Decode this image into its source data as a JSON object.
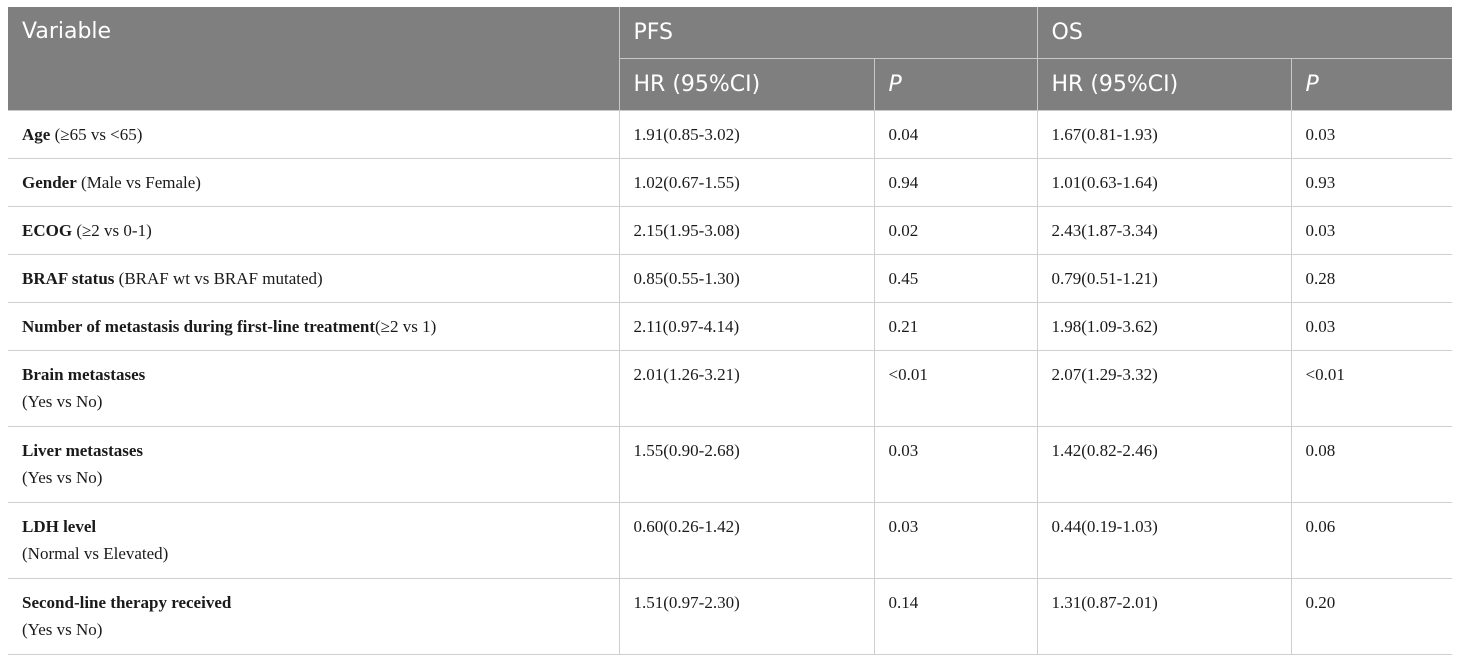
{
  "header": {
    "variable": "Variable",
    "pfs": "PFS",
    "os": "OS",
    "hr": "HR (95%CI)",
    "p": "P"
  },
  "rows": [
    {
      "name": "Age",
      "detail": " (≥65 vs <65)",
      "detail2": "",
      "pfs_hr": "1.91(0.85-3.02)",
      "pfs_p": "0.04",
      "os_hr": "1.67(0.81-1.93)",
      "os_p": "0.03"
    },
    {
      "name": "Gender",
      "detail": " (Male vs Female)",
      "detail2": "",
      "pfs_hr": "1.02(0.67-1.55)",
      "pfs_p": "0.94",
      "os_hr": "1.01(0.63-1.64)",
      "os_p": "0.93"
    },
    {
      "name": "ECOG",
      "detail": " (≥2 vs 0-1)",
      "detail2": "",
      "pfs_hr": "2.15(1.95-3.08)",
      "pfs_p": "0.02",
      "os_hr": "2.43(1.87-3.34)",
      "os_p": "0.03"
    },
    {
      "name": "BRAF status",
      "detail": " (BRAF wt vs BRAF mutated)",
      "detail2": "",
      "pfs_hr": "0.85(0.55-1.30)",
      "pfs_p": "0.45",
      "os_hr": "0.79(0.51-1.21)",
      "os_p": "0.28"
    },
    {
      "name": "Number of metastasis during first-line treatment",
      "detail": "(≥2 vs 1)",
      "detail2": "",
      "pfs_hr": "2.11(0.97-4.14)",
      "pfs_p": "0.21",
      "os_hr": "1.98(1.09-3.62)",
      "os_p": "0.03"
    },
    {
      "name": "Brain metastases",
      "detail": "",
      "detail2": "(Yes vs No)",
      "pfs_hr": "2.01(1.26-3.21)",
      "pfs_p": "<0.01",
      "os_hr": "2.07(1.29-3.32)",
      "os_p": "<0.01"
    },
    {
      "name": "Liver metastases",
      "detail": "",
      "detail2": "(Yes vs No)",
      "pfs_hr": "1.55(0.90-2.68)",
      "pfs_p": "0.03",
      "os_hr": "1.42(0.82-2.46)",
      "os_p": "0.08"
    },
    {
      "name": "LDH level",
      "detail": "",
      "detail2": "(Normal vs Elevated)",
      "pfs_hr": "0.60(0.26-1.42)",
      "pfs_p": "0.03",
      "os_hr": "0.44(0.19-1.03)",
      "os_p": "0.06"
    },
    {
      "name": "Second-line therapy received",
      "detail": "",
      "detail2": "(Yes vs No)",
      "pfs_hr": "1.51(0.97-2.30)",
      "pfs_p": "0.14",
      "os_hr": "1.31(0.87-2.01)",
      "os_p": "0.20"
    }
  ]
}
